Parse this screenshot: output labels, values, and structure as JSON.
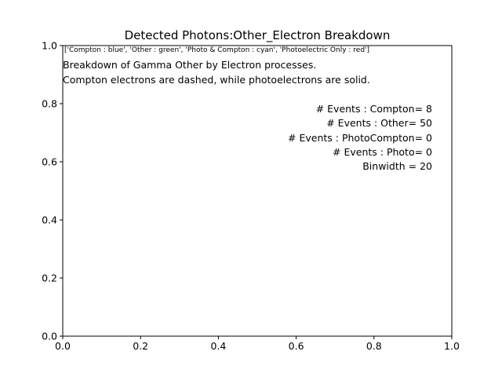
{
  "chart_data": {
    "type": "line",
    "title": "Detected Photons:Other_Electron Breakdown",
    "xlabel": "",
    "ylabel": "",
    "xlim": [
      0.0,
      1.0
    ],
    "ylim": [
      0.0,
      1.0
    ],
    "x_ticks": [
      "0.0",
      "0.2",
      "0.4",
      "0.6",
      "0.8",
      "1.0"
    ],
    "y_ticks": [
      "0.0",
      "0.2",
      "0.4",
      "0.6",
      "0.8",
      "1.0"
    ],
    "grid": false,
    "series": [],
    "legend_text": "['Compton : blue', 'Other : green', 'Photo & Compton : cyan', 'Photoelectric Only : red']",
    "annotations": {
      "description": [
        "Breakdown of Gamma Other by Electron processes.",
        "Compton electrons are dashed, while photoelectrons are solid."
      ],
      "stats": [
        "# Events : Compton= 8",
        "# Events : Other= 50",
        "# Events : PhotoCompton= 0",
        "# Events : Photo= 0",
        "Binwidth = 20"
      ]
    }
  }
}
